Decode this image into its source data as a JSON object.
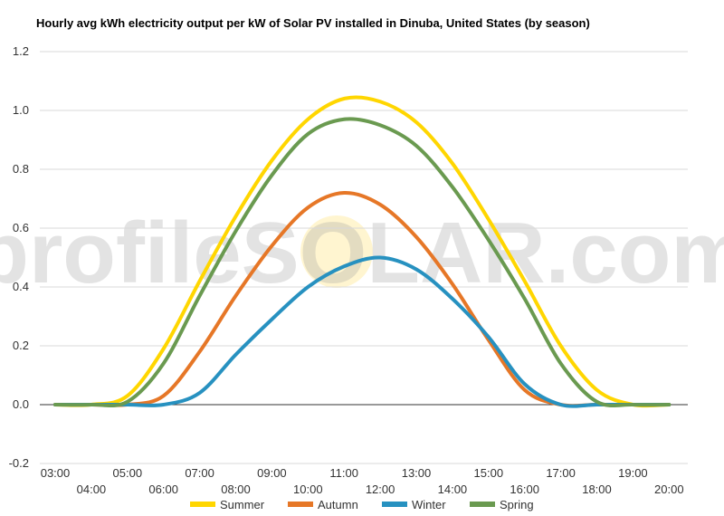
{
  "chart_data": {
    "type": "line",
    "title": "Hourly avg kWh electricity output per kW of Solar PV installed in Dinuba, United States (by season)",
    "xlabel": "",
    "ylabel": "",
    "ylim": [
      -0.2,
      1.2
    ],
    "yticks": [
      "1.2",
      "1.0",
      "0.8",
      "0.6",
      "0.4",
      "0.2",
      "0.0",
      "-0.2"
    ],
    "ytick_values": [
      1.2,
      1.0,
      0.8,
      0.6,
      0.4,
      0.2,
      0.0,
      -0.2
    ],
    "categories": [
      "03:00",
      "04:00",
      "05:00",
      "06:00",
      "07:00",
      "08:00",
      "09:00",
      "10:00",
      "11:00",
      "12:00",
      "13:00",
      "14:00",
      "15:00",
      "16:00",
      "17:00",
      "18:00",
      "19:00",
      "20:00"
    ],
    "grid": true,
    "legend_position": "bottom",
    "watermark": "profileSOLAR.com",
    "series": [
      {
        "name": "Summer",
        "color": "#ffd600",
        "values": [
          0.0,
          0.0,
          0.03,
          0.19,
          0.42,
          0.64,
          0.83,
          0.97,
          1.04,
          1.03,
          0.96,
          0.82,
          0.63,
          0.42,
          0.2,
          0.05,
          0.0,
          0.0
        ]
      },
      {
        "name": "Autumn",
        "color": "#e67727",
        "values": [
          0.0,
          0.0,
          0.0,
          0.03,
          0.18,
          0.37,
          0.54,
          0.67,
          0.72,
          0.68,
          0.57,
          0.41,
          0.22,
          0.05,
          0.0,
          0.0,
          0.0,
          0.0
        ]
      },
      {
        "name": "Winter",
        "color": "#2791c0",
        "values": [
          0.0,
          0.0,
          0.0,
          0.0,
          0.04,
          0.17,
          0.29,
          0.4,
          0.47,
          0.5,
          0.46,
          0.36,
          0.23,
          0.07,
          0.0,
          0.0,
          0.0,
          0.0
        ]
      },
      {
        "name": "Spring",
        "color": "#6a9a50",
        "values": [
          0.0,
          0.0,
          0.01,
          0.14,
          0.37,
          0.59,
          0.78,
          0.92,
          0.97,
          0.95,
          0.88,
          0.74,
          0.56,
          0.36,
          0.14,
          0.01,
          0.0,
          0.0
        ]
      }
    ]
  }
}
